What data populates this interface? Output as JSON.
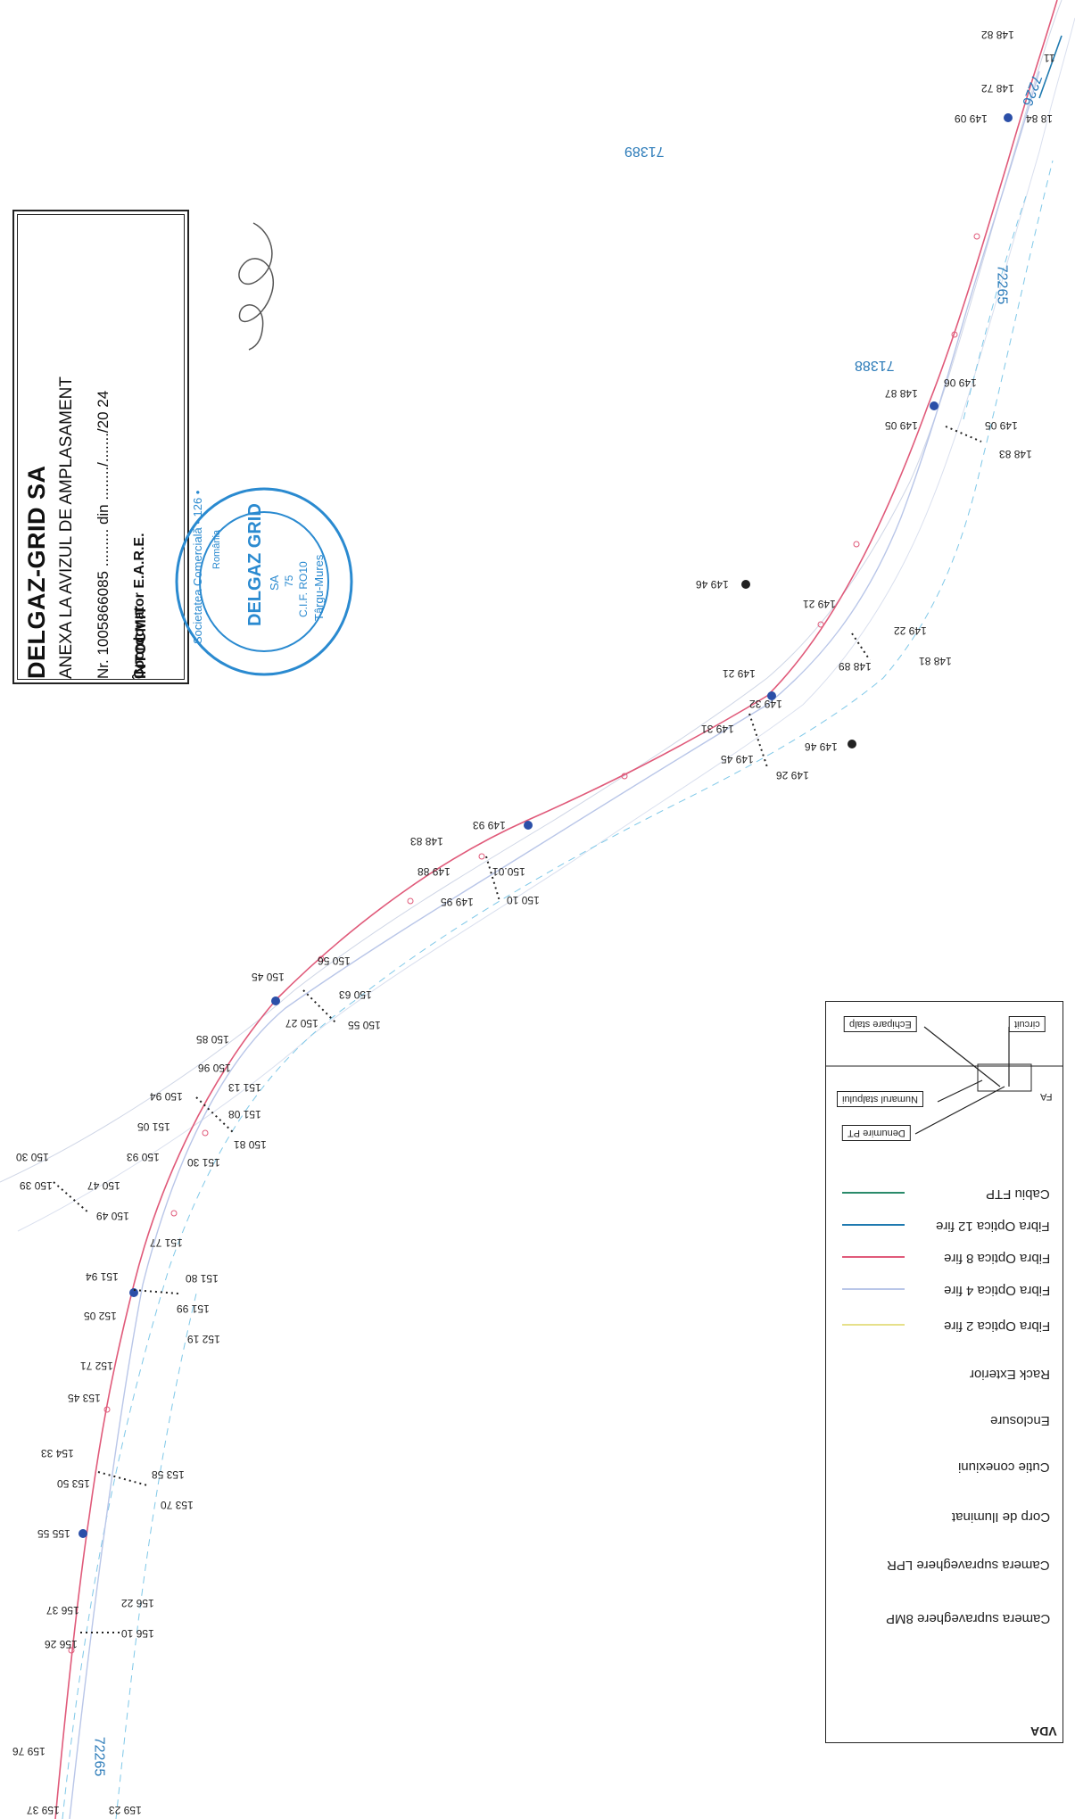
{
  "stamp": {
    "title": "DELGAZ-GRID SA",
    "subtitle": "ANEXA LA AVIZUL DE AMPLASAMENT",
    "number_line": "Nr. 1005866085 ......... din ......../......./20 24",
    "coordinator": "Coordonator E.A.R.E.",
    "status": "ÎNTOCMIT"
  },
  "seal": {
    "text_outer": "Societatea Comercială • 126 •",
    "name": "DELGAZ GRID",
    "sa": "SA",
    "reg": "75",
    "cif": "C.I.F. RO10",
    "city": "Târgu-Mureș",
    "country": "România"
  },
  "parcels": [
    {
      "id": "p-71389",
      "text": "71389"
    },
    {
      "id": "p-71388",
      "text": "71388"
    },
    {
      "id": "p-72265-a",
      "text": "72265"
    },
    {
      "id": "p-72265-b",
      "text": "72265"
    },
    {
      "id": "p-7226-top",
      "text": "7226"
    }
  ],
  "elevations": [
    "148 82",
    "148 72",
    "149 09",
    "18 84",
    "11",
    "148 87",
    "149 06",
    "149 05",
    "149 05",
    "148 83",
    "149 46",
    "149 21",
    "148 89",
    "148 81",
    "149 22",
    "149 32",
    "149 21",
    "149 31",
    "149 45",
    "149 46",
    "149 26",
    "149 93",
    "148 83",
    "149 88",
    "150.01",
    "149 95",
    "150 10",
    "150 45",
    "150 56",
    "150 63",
    "150 27",
    "150 55",
    "150 85",
    "150 96",
    "151 13",
    "150 94",
    "151 08",
    "151 05",
    "150 81",
    "150 93",
    "151 30",
    "150 47",
    "150 39",
    "150 30",
    "150 49",
    "151 77",
    "151 94",
    "151 80",
    "152 05",
    "151 99",
    "152 19",
    "152 71",
    "153 45",
    "154 33",
    "153 50",
    "153 58",
    "153 70",
    "155 55",
    "156 22",
    "156 37",
    "156 10",
    "156 26",
    "159 37",
    "159 76",
    "159 23"
  ],
  "legend": {
    "title": "VDA",
    "items": [
      {
        "label": "Cabiu FTP",
        "color": "#2a8a6a"
      },
      {
        "label": "Fibra Optica 12 fire",
        "color": "#1f7ab0"
      },
      {
        "label": "Fibra Optica 8 fire",
        "color": "#e05a7a"
      },
      {
        "label": "Fibra Optica 4 fire",
        "color": "#b9c6e8"
      },
      {
        "label": "Fibra Optica 2 fire",
        "color": "#e6e08a"
      },
      {
        "label": "Rack Exterior",
        "color": ""
      },
      {
        "label": "Enclosure",
        "color": ""
      },
      {
        "label": "Cutie conexiuni",
        "color": ""
      },
      {
        "label": "Corp de Iluminat",
        "color": ""
      },
      {
        "label": "Camera supraveghere LPR",
        "color": ""
      },
      {
        "label": "Camera supraveghere 8MP",
        "color": ""
      }
    ],
    "callouts": {
      "echipare": "Echipare stalp",
      "numar": "Numarul stalpului",
      "denumire": "Denumire PT",
      "circuit": "circuit",
      "fa": "FA"
    }
  },
  "signature": "signature"
}
